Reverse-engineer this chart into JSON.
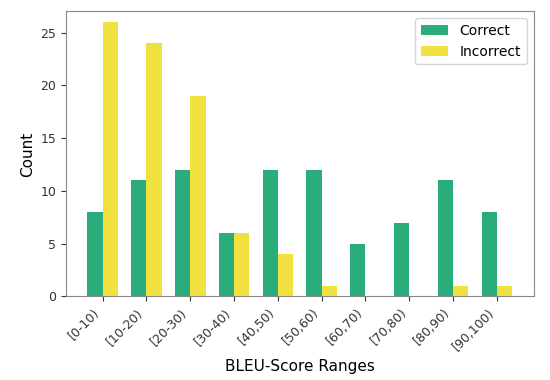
{
  "categories": [
    "[0-10)",
    "[10-20)",
    "[20-30)",
    "[30-40)",
    "[40,50)",
    "[50,60)",
    "[60,70)",
    "[70,80)",
    "[80,90)",
    "[90,100)"
  ],
  "correct": [
    8,
    11,
    12,
    6,
    12,
    12,
    5,
    7,
    11,
    8
  ],
  "incorrect": [
    26,
    24,
    19,
    6,
    4,
    1,
    0,
    0,
    1,
    1
  ],
  "correct_color": "#2aad7a",
  "incorrect_color": "#f0e040",
  "xlabel": "BLEU-Score Ranges",
  "ylabel": "Count",
  "ylim": [
    0,
    27
  ],
  "yticks": [
    0,
    5,
    10,
    15,
    20,
    25
  ],
  "legend_labels": [
    "Correct",
    "Incorrect"
  ],
  "background_color": "#ffffff",
  "figure_border_color": "#aaaaaa",
  "bar_width": 0.35,
  "title": ""
}
